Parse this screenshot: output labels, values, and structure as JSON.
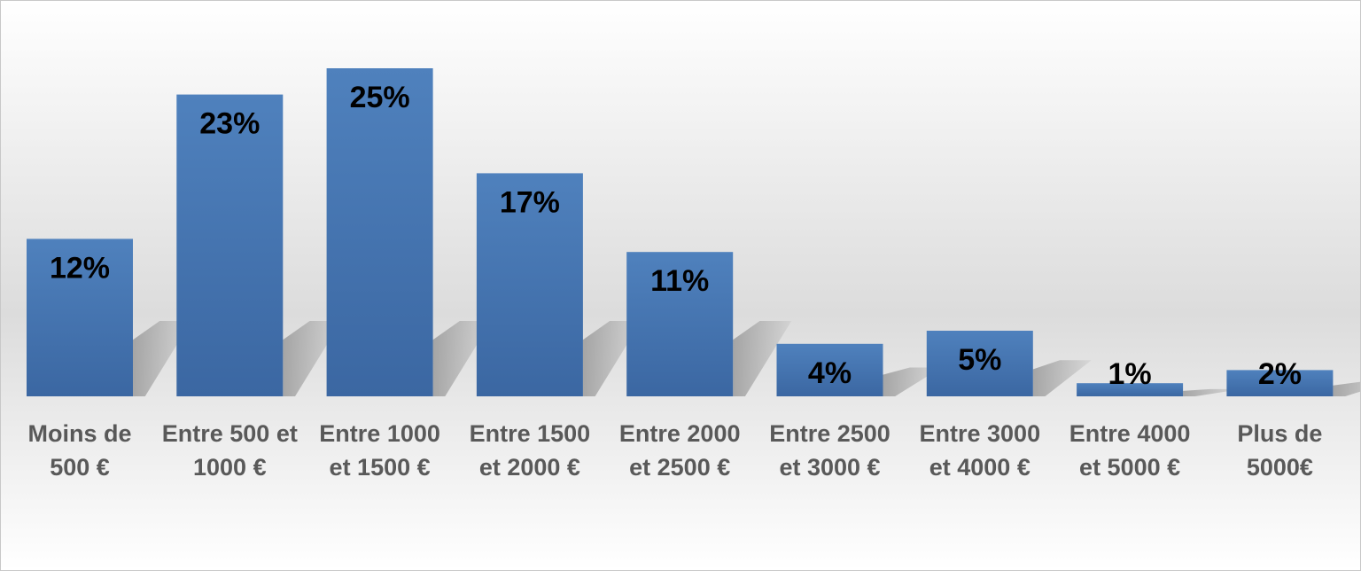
{
  "chart_data": {
    "type": "bar",
    "categories": [
      [
        "Moins de",
        "500 €"
      ],
      [
        "Entre 500 et",
        "1000 €"
      ],
      [
        "Entre 1000",
        "et 1500 €"
      ],
      [
        "Entre 1500",
        "et 2000 €"
      ],
      [
        "Entre 2000",
        "et 2500 €"
      ],
      [
        "Entre 2500",
        "et 3000 €"
      ],
      [
        "Entre 3000",
        "et 4000 €"
      ],
      [
        "Entre 4000",
        "et 5000 €"
      ],
      [
        "Plus de",
        "5000€"
      ]
    ],
    "values": [
      12,
      23,
      25,
      17,
      11,
      4,
      5,
      1,
      2
    ],
    "data_labels": [
      "12%",
      "23%",
      "25%",
      "17%",
      "11%",
      "4%",
      "5%",
      "1%",
      "2%"
    ],
    "unit": "%",
    "ylim": [
      0,
      25
    ],
    "grid": false,
    "legend": "none",
    "title": "",
    "xlabel": "",
    "ylabel": "",
    "colors": {
      "bar_top": "#4f81bd",
      "bar_bottom": "#3b67a2",
      "shadow": "#9a9a9a",
      "data_label": "#000000",
      "category_label": "#595959",
      "background_top": "#ffffff",
      "background_mid": "#dcdcdc",
      "background_bottom": "#ffffff"
    }
  }
}
